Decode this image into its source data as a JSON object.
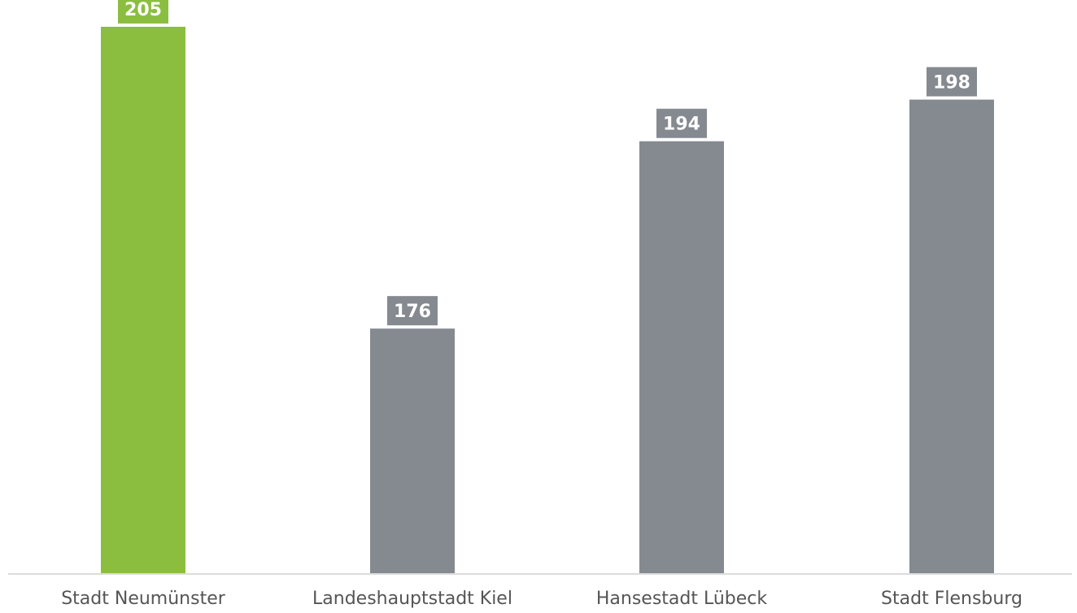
{
  "chart_data": {
    "type": "bar",
    "title": "",
    "xlabel": "",
    "ylabel": "",
    "categories": [
      "Stadt Neumünster",
      "Landeshauptstadt Kiel",
      "Hansestadt Lübeck",
      "Stadt Flensburg"
    ],
    "values": [
      205,
      176,
      194,
      198
    ],
    "ylim": [
      152.5,
      206.4
    ],
    "grid": false,
    "legend": "none",
    "colors": {
      "highlight": "#8bbe3f",
      "default": "#858a90",
      "label_text": "#ffffff",
      "axis_text": "#555555",
      "axis_line": "#d0d0d0"
    },
    "highlight_index": 0
  }
}
